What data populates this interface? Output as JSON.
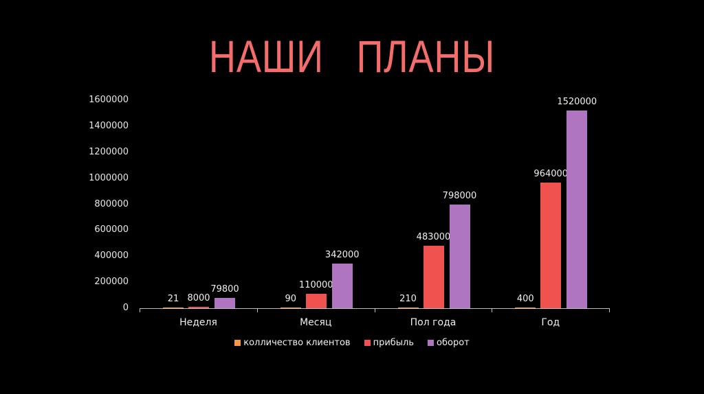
{
  "slide": {
    "title": "НАШИ   ПЛАНЫ"
  },
  "colors": {
    "title": "#f46d6a",
    "clients": "#f79646",
    "profit": "#f0524f",
    "turnover": "#b075c0",
    "background": "#000000"
  },
  "chart_data": {
    "type": "bar",
    "title": "",
    "categories": [
      "Неделя",
      "Месяц",
      "Пол года",
      "Год"
    ],
    "series": [
      {
        "name": "колличество клиентов",
        "values": [
          21,
          90,
          210,
          400
        ],
        "color": "#f79646"
      },
      {
        "name": "прибыль",
        "values": [
          8000,
          110000,
          483000,
          964000
        ],
        "color": "#f0524f"
      },
      {
        "name": "оборот",
        "values": [
          79800,
          342000,
          798000,
          1520000
        ],
        "color": "#b075c0"
      }
    ],
    "ylim": [
      0,
      1600000
    ],
    "yticks": [
      "0",
      "200000",
      "400000",
      "600000",
      "800000",
      "1000000",
      "1200000",
      "1400000",
      "1600000"
    ],
    "grid": false,
    "legend_position": "bottom",
    "data_labels": true,
    "xlabel": "",
    "ylabel": ""
  }
}
